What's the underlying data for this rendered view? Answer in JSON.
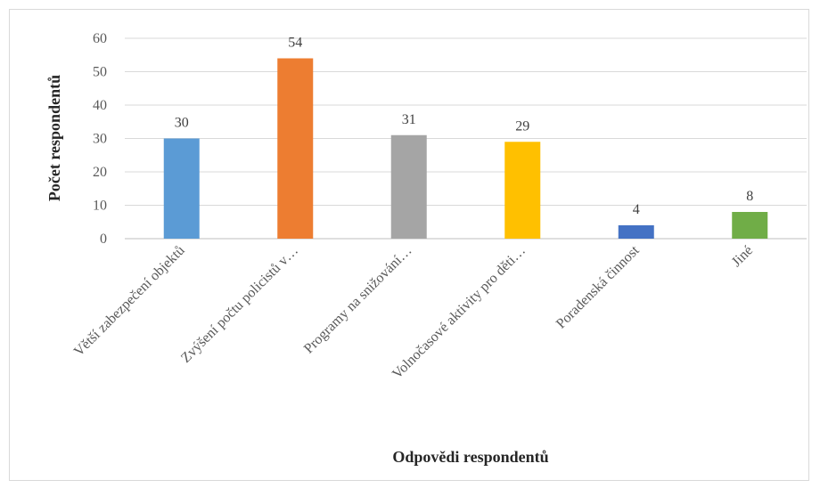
{
  "chart_data": {
    "type": "bar",
    "categories": [
      "Větší zabezpečení objektů",
      "Zvýšení počtu policistů v…",
      "Programy na snižování…",
      "Volnočasové aktivity pro děti…",
      "Poradenská činnost",
      "Jiné"
    ],
    "values": [
      30,
      54,
      31,
      29,
      4,
      8
    ],
    "colors": [
      "#5b9bd5",
      "#ed7d31",
      "#a5a5a5",
      "#ffc000",
      "#4472c4",
      "#70ad47"
    ],
    "xlabel": "Odpovědi respondentů",
    "ylabel": "Počet respondentů",
    "ylim": [
      0,
      60
    ],
    "yticks": [
      0,
      10,
      20,
      30,
      40,
      50,
      60
    ],
    "grid": true,
    "data_labels": true
  }
}
